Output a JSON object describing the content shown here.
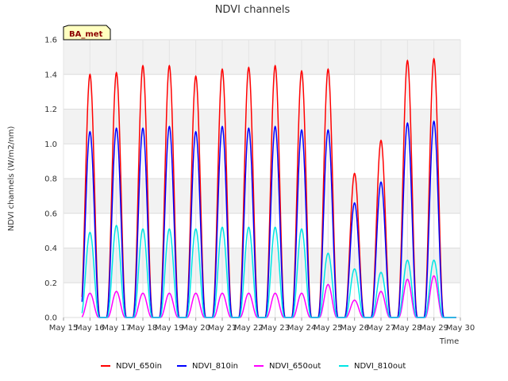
{
  "chart_data": {
    "type": "line",
    "title": "NDVI channels",
    "xlabel": "Time",
    "ylabel": "NDVI channels (W/m2/nm)",
    "ylim": [
      0,
      1.6
    ],
    "xlim": [
      15,
      30
    ],
    "yticks": [
      0.0,
      0.2,
      0.4,
      0.6,
      0.8,
      1.0,
      1.2,
      1.4,
      1.6
    ],
    "ytick_labels": [
      "0.0",
      "0.2",
      "0.4",
      "0.6",
      "0.8",
      "1.0",
      "1.2",
      "1.4",
      "1.6"
    ],
    "xticks": [
      15,
      16,
      17,
      18,
      19,
      20,
      21,
      22,
      23,
      24,
      25,
      26,
      27,
      28,
      29,
      30
    ],
    "xtick_labels": [
      "May 15",
      "May 16",
      "May 17",
      "May 18",
      "May 19",
      "May 20",
      "May 21",
      "May 22",
      "May 23",
      "May 24",
      "May 25",
      "May 26",
      "May 27",
      "May 28",
      "May 29",
      "May 30"
    ],
    "grid": true,
    "badge": "BA_met",
    "legend_position": "bottom",
    "day_peaks": [
      16,
      17,
      18,
      19,
      20,
      21,
      22,
      23,
      24,
      25,
      26,
      27,
      28,
      29
    ],
    "series": [
      {
        "name": "NDVI_650in",
        "color": "#ff0000",
        "peaks": [
          1.4,
          1.41,
          1.45,
          1.45,
          1.39,
          1.43,
          1.44,
          1.45,
          1.42,
          1.43,
          0.83,
          1.02,
          1.48,
          1.49
        ]
      },
      {
        "name": "NDVI_810in",
        "color": "#0000ff",
        "peaks": [
          1.07,
          1.09,
          1.09,
          1.1,
          1.07,
          1.1,
          1.09,
          1.1,
          1.08,
          1.08,
          0.66,
          0.78,
          1.12,
          1.13
        ]
      },
      {
        "name": "NDVI_650out",
        "color": "#ff00ff",
        "peaks": [
          0.14,
          0.15,
          0.14,
          0.14,
          0.14,
          0.14,
          0.14,
          0.14,
          0.14,
          0.19,
          0.1,
          0.15,
          0.22,
          0.24
        ]
      },
      {
        "name": "NDVI_810out",
        "color": "#00e5e5",
        "peaks": [
          0.49,
          0.53,
          0.51,
          0.51,
          0.51,
          0.52,
          0.52,
          0.52,
          0.51,
          0.37,
          0.28,
          0.26,
          0.33,
          0.33
        ]
      }
    ]
  }
}
